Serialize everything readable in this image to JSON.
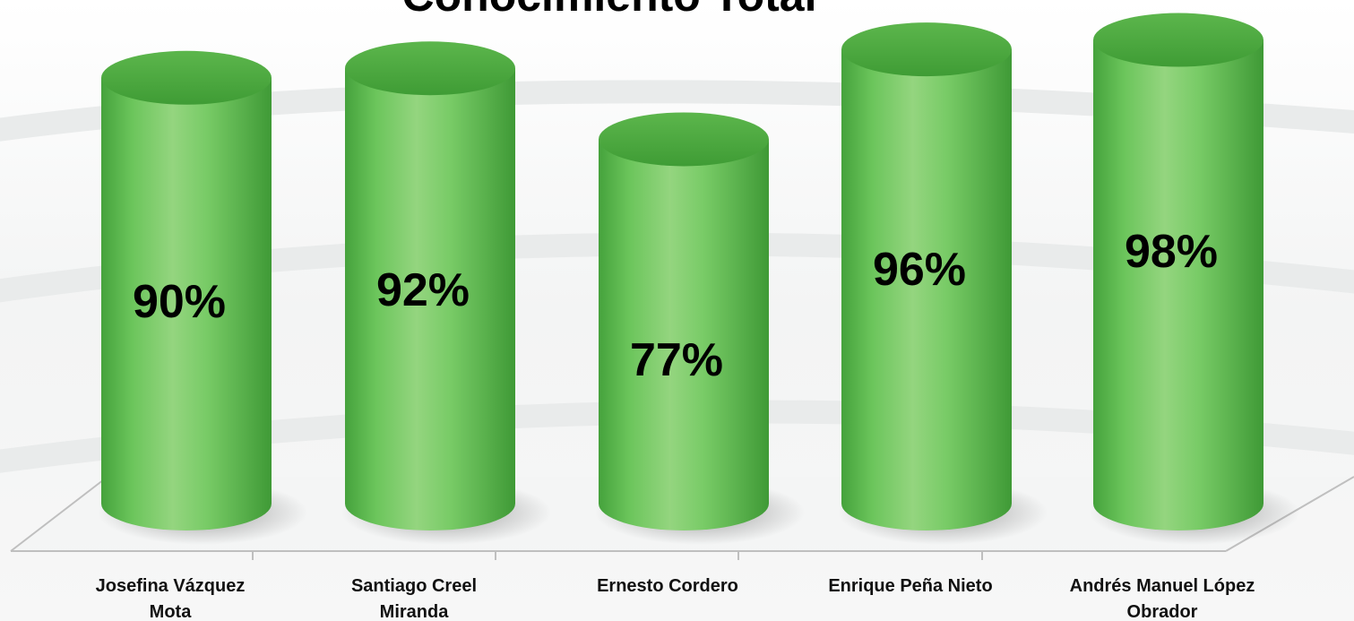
{
  "chart_data": {
    "type": "bar",
    "title": "Conocimiento Total",
    "categories": [
      [
        "Josefina Vázquez",
        "Mota"
      ],
      [
        "Santiago Creel",
        "Miranda"
      ],
      [
        "Ernesto Cordero"
      ],
      [
        "Enrique Peña Nieto"
      ],
      [
        "Andrés Manuel López",
        "Obrador"
      ]
    ],
    "values": [
      90,
      92,
      77,
      96,
      98
    ],
    "value_labels": [
      "90%",
      "92%",
      "77%",
      "96%",
      "98%"
    ],
    "bar_style": "3d-cylinder",
    "bar_color": "#6cc25c",
    "grid": false,
    "legend": "none"
  }
}
